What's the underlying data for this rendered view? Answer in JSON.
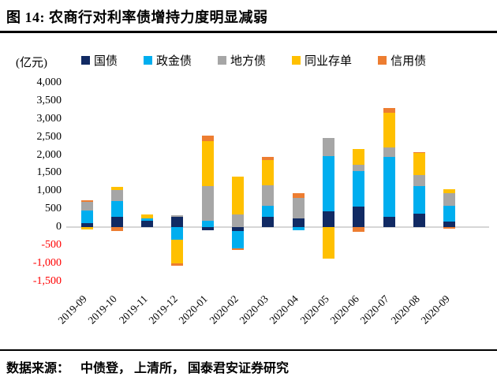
{
  "header": {
    "title": "图 14:  农商行对利率债增持力度明显减弱"
  },
  "footer": {
    "label": "数据来源：",
    "source": "中债登， 上清所， 国泰君安证券研究"
  },
  "chart_data": {
    "type": "bar",
    "stacked": true,
    "unit": "(亿元)",
    "title": "农商行对利率债增持力度明显减弱",
    "categories": [
      "2019-09",
      "2019-10",
      "2019-11",
      "2019-12",
      "2020-01",
      "2020-02",
      "2020-03",
      "2020-04",
      "2020-05",
      "2020-06",
      "2020-07",
      "2020-08",
      "2020-09"
    ],
    "series": [
      {
        "name": "国债",
        "color": "#112A63",
        "values": [
          110,
          280,
          170,
          280,
          -80,
          -120,
          280,
          240,
          430,
          570,
          280,
          380,
          150
        ]
      },
      {
        "name": "政金债",
        "color": "#00AEEF",
        "values": [
          350,
          450,
          60,
          -360,
          180,
          -460,
          320,
          -80,
          1530,
          980,
          1670,
          750,
          440
        ]
      },
      {
        "name": "地方债",
        "color": "#A6A6A6",
        "values": [
          250,
          300,
          0,
          50,
          950,
          350,
          550,
          570,
          520,
          180,
          250,
          320,
          360
        ]
      },
      {
        "name": "同业存单",
        "color": "#FFC000",
        "values": [
          -70,
          90,
          120,
          -650,
          1250,
          1050,
          700,
          0,
          -870,
          440,
          970,
          600,
          90
        ]
      },
      {
        "name": "信用债",
        "color": "#ED7D31",
        "values": [
          30,
          -110,
          0,
          -70,
          150,
          -50,
          90,
          130,
          0,
          -140,
          140,
          20,
          -50
        ]
      }
    ],
    "ylim": [
      -1500,
      4000
    ],
    "ytick_step": 500,
    "grid": false,
    "legend_position": "top",
    "axis_colors": {
      "positive_tick": "#000000",
      "negative_tick": "#FF0000",
      "zero_line": "#D6D6D6"
    }
  }
}
